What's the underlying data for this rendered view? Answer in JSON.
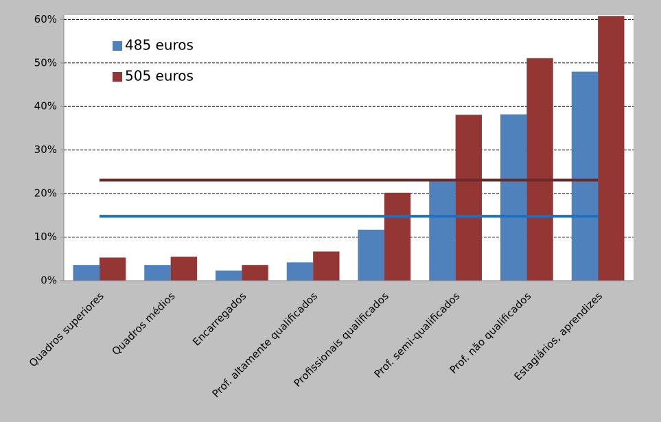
{
  "chart_data": {
    "type": "bar",
    "categories": [
      "Quadros superiores",
      "Quadros médios",
      "Encarregados",
      "Prof. altamente qualificados",
      "Profissionais qualificados",
      "Prof. semi-qualificados",
      "Prof. não qualificados",
      "Estagiários, aprendizes"
    ],
    "series": [
      {
        "name": "485 euros",
        "color": "#4f81bd",
        "values": [
          3.6,
          3.6,
          2.3,
          4.2,
          11.7,
          23.1,
          38.2,
          48
        ]
      },
      {
        "name": "505 euros",
        "color": "#943634",
        "values": [
          5.3,
          5.5,
          3.6,
          6.7,
          20.2,
          38.1,
          51.1,
          60.8
        ]
      }
    ],
    "average_lines": [
      {
        "value": 14.8,
        "color": "#1f6fbf"
      },
      {
        "value": 23.1,
        "color": "#6b2a2a"
      }
    ],
    "ylim": [
      0,
      61
    ],
    "yticks": [
      {
        "value": 0,
        "label": "0%"
      },
      {
        "value": 10,
        "label": "10%"
      },
      {
        "value": 20,
        "label": "20%"
      },
      {
        "value": 30,
        "label": "30%"
      },
      {
        "value": 40,
        "label": "40%"
      },
      {
        "value": 50,
        "label": "50%"
      },
      {
        "value": 60,
        "label": "60%"
      }
    ],
    "grid": true,
    "legend": "upper left"
  }
}
